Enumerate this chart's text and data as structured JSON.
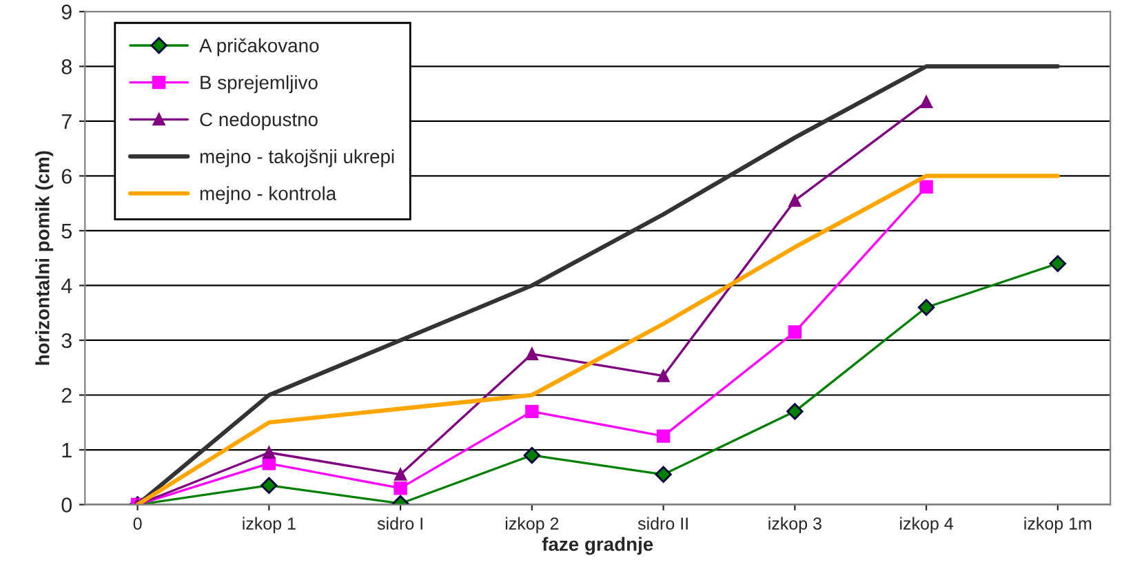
{
  "chart_data": {
    "type": "line",
    "xlabel": "faze gradnje",
    "ylabel": "horizontalni pomik (cm)",
    "categories": [
      "0",
      "izkop 1",
      "sidro I",
      "izkop 2",
      "sidro II",
      "izkop 3",
      "izkop 4",
      "izkop 1m"
    ],
    "series": [
      {
        "name": "A pričakovano",
        "color": "#008000",
        "marker": "diamond",
        "values": [
          0,
          0.35,
          0.02,
          0.9,
          0.55,
          1.7,
          3.6,
          4.4
        ]
      },
      {
        "name": "B sprejemljivo",
        "color": "#ff00ff",
        "marker": "square",
        "values": [
          0,
          0.75,
          0.3,
          1.7,
          1.25,
          3.15,
          5.8,
          null
        ]
      },
      {
        "name": "C nedopustno",
        "color": "#800080",
        "marker": "triangle",
        "values": [
          0,
          0.95,
          0.55,
          2.75,
          2.35,
          5.55,
          7.35,
          null
        ]
      },
      {
        "name": "mejno - takojšnji ukrepi",
        "color": "#333333",
        "marker": "none",
        "values": [
          0,
          2,
          3,
          4,
          5.3,
          6.7,
          8,
          8
        ]
      },
      {
        "name": "mejno - kontrola",
        "color": "#ffa500",
        "marker": "none",
        "values": [
          0,
          1.5,
          1.75,
          2,
          3.3,
          4.7,
          6,
          6
        ]
      }
    ],
    "ylim": [
      0,
      9
    ],
    "yticks": [
      0,
      1,
      2,
      3,
      4,
      5,
      6,
      7,
      8,
      9
    ],
    "grid": "y",
    "legend": "top left",
    "line_style": "solid"
  }
}
